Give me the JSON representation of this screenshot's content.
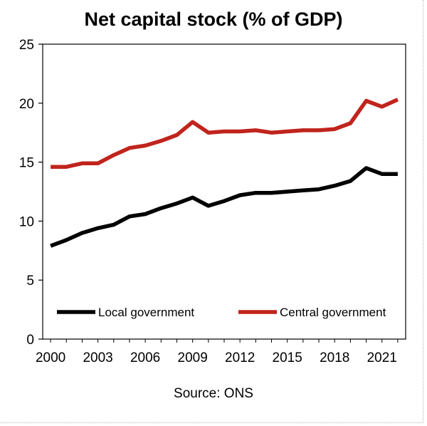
{
  "chart_data": {
    "type": "line",
    "title": "Net capital stock (% of GDP)",
    "source": "Source: ONS",
    "x": [
      2000,
      2001,
      2002,
      2003,
      2004,
      2005,
      2006,
      2007,
      2008,
      2009,
      2010,
      2011,
      2012,
      2013,
      2014,
      2015,
      2016,
      2017,
      2018,
      2019,
      2020,
      2021,
      2022
    ],
    "xticks": [
      2000,
      2003,
      2006,
      2009,
      2012,
      2015,
      2018,
      2021
    ],
    "ylim": [
      0,
      25
    ],
    "yticks": [
      0,
      5,
      10,
      15,
      20,
      25
    ],
    "grid": false,
    "legend_position": "lower inside",
    "series": [
      {
        "name": "Local government",
        "color": "#000000",
        "values": [
          7.9,
          8.4,
          9.0,
          9.4,
          9.7,
          10.4,
          10.6,
          11.1,
          11.5,
          12.0,
          11.3,
          11.7,
          12.2,
          12.4,
          12.4,
          12.5,
          12.6,
          12.7,
          13.0,
          13.4,
          14.5,
          14.0,
          14.0
        ]
      },
      {
        "name": "Central government",
        "color": "#c0241c",
        "values": [
          14.6,
          14.6,
          14.9,
          14.9,
          15.6,
          16.2,
          16.4,
          16.8,
          17.3,
          18.4,
          17.5,
          17.6,
          17.6,
          17.7,
          17.5,
          17.6,
          17.7,
          17.7,
          17.8,
          18.3,
          20.2,
          19.7,
          20.3
        ]
      }
    ]
  }
}
